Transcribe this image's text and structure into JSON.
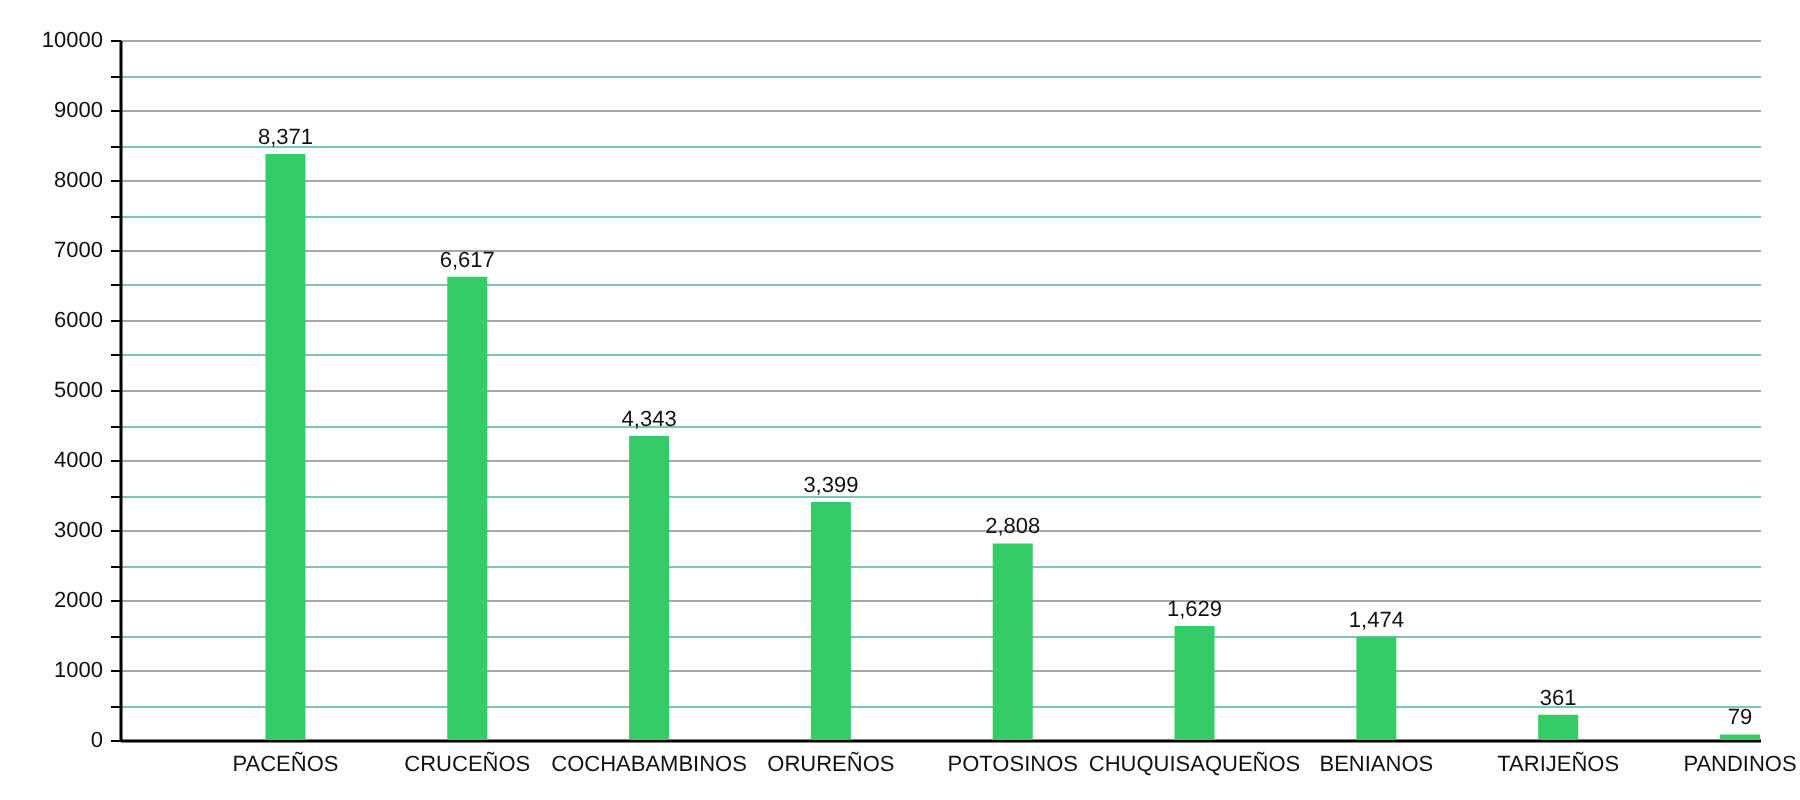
{
  "chart_data": {
    "type": "bar",
    "categories": [
      "PACEÑOS",
      "CRUCEÑOS",
      "COCHABAMBINOS",
      "ORUREÑOS",
      "POTOSINOS",
      "CHUQUISAQUEÑOS",
      "BENIANOS",
      "TARIJEÑOS",
      "PANDINOS"
    ],
    "values": [
      8371,
      6617,
      4343,
      3399,
      2808,
      1629,
      1474,
      361,
      79
    ],
    "value_labels": [
      "8,371",
      "6,617",
      "4,343",
      "3,399",
      "2,808",
      "1,629",
      "1,474",
      "361",
      "79"
    ],
    "color": "#33cc66",
    "ylim": [
      0,
      10000
    ],
    "yticks": [
      0,
      {
        "value": 500,
        "label": null
      },
      1000,
      {
        "value": 1500,
        "label": null
      },
      2000,
      {
        "value": 2500,
        "label": null
      },
      3000,
      {
        "value": 3500,
        "label": null
      },
      4000,
      {
        "value": 4500,
        "label": null
      },
      5000,
      {
        "value": 5500,
        "label": null
      },
      6000,
      {
        "value": 6500,
        "label": null
      },
      7000,
      {
        "value": 7500,
        "label": null
      },
      8000,
      {
        "value": 8500,
        "label": null
      },
      9000,
      {
        "value": 9500,
        "label": null
      },
      10000
    ],
    "grid": "y"
  }
}
